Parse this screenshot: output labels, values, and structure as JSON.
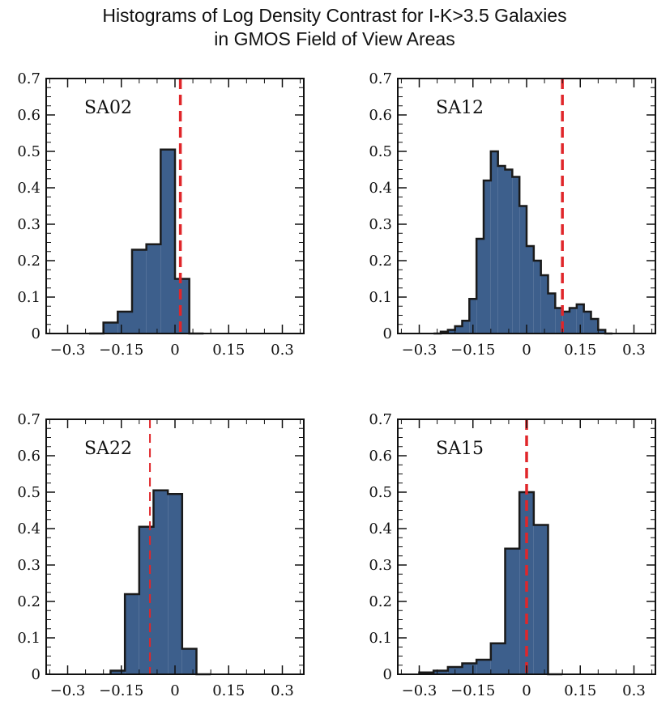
{
  "title": [
    "Histograms of Log Density Contrast for I-K>3.5 Galaxies",
    "in GMOS Field of View Areas"
  ],
  "colors": {
    "fill": "#3d5f8c",
    "outline": "#1a1a1a",
    "marker": "#e0262a"
  },
  "chart_data": [
    {
      "type": "bar",
      "label": "SA02",
      "xlim": [
        -0.36,
        0.36
      ],
      "ylim": [
        0,
        0.7
      ],
      "xticks": [
        "-0.3",
        "-0.15",
        "0",
        "0.15",
        "0.3"
      ],
      "xtick_values": [
        -0.3,
        -0.15,
        0,
        0.15,
        0.3
      ],
      "yticks": [
        "0",
        "0.1",
        "0.2",
        "0.3",
        "0.4",
        "0.5",
        "0.6",
        "0.7"
      ],
      "ytick_values": [
        0,
        0.1,
        0.2,
        0.3,
        0.4,
        0.5,
        0.6,
        0.7
      ],
      "bin_edges": [
        -0.24,
        -0.2,
        -0.16,
        -0.12,
        -0.08,
        -0.04,
        0.0,
        0.04,
        0.08
      ],
      "values": [
        0.0,
        0.03,
        0.06,
        0.23,
        0.245,
        0.505,
        0.15,
        0.0
      ],
      "marker_x": 0.015,
      "marker_style": "thick-dashed"
    },
    {
      "type": "bar",
      "label": "SA12",
      "xlim": [
        -0.36,
        0.36
      ],
      "ylim": [
        0,
        0.7
      ],
      "xticks": [
        "-0.3",
        "-0.15",
        "0",
        "0.15",
        "0.3"
      ],
      "xtick_values": [
        -0.3,
        -0.15,
        0,
        0.15,
        0.3
      ],
      "yticks": [
        "0",
        "0.1",
        "0.2",
        "0.3",
        "0.4",
        "0.5",
        "0.6",
        "0.7"
      ],
      "ytick_values": [
        0,
        0.1,
        0.2,
        0.3,
        0.4,
        0.5,
        0.6,
        0.7
      ],
      "bin_edges": [
        -0.26,
        -0.24,
        -0.22,
        -0.2,
        -0.18,
        -0.16,
        -0.14,
        -0.12,
        -0.1,
        -0.08,
        -0.06,
        -0.04,
        -0.02,
        0.0,
        0.02,
        0.04,
        0.06,
        0.08,
        0.1,
        0.12,
        0.14,
        0.16,
        0.18,
        0.2,
        0.22,
        0.24
      ],
      "values": [
        0.0,
        0.005,
        0.01,
        0.02,
        0.035,
        0.095,
        0.26,
        0.42,
        0.5,
        0.46,
        0.45,
        0.43,
        0.35,
        0.24,
        0.2,
        0.16,
        0.11,
        0.07,
        0.06,
        0.07,
        0.08,
        0.06,
        0.04,
        0.01,
        0.0
      ],
      "marker_x": 0.1,
      "marker_style": "thick-dashed"
    },
    {
      "type": "bar",
      "label": "SA22",
      "xlim": [
        -0.36,
        0.36
      ],
      "ylim": [
        0,
        0.7
      ],
      "xticks": [
        "-0.3",
        "-0.15",
        "0",
        "0.15",
        "0.3"
      ],
      "xtick_values": [
        -0.3,
        -0.15,
        0,
        0.15,
        0.3
      ],
      "yticks": [
        "0",
        "0.1",
        "0.2",
        "0.3",
        "0.4",
        "0.5",
        "0.6",
        "0.7"
      ],
      "ytick_values": [
        0,
        0.1,
        0.2,
        0.3,
        0.4,
        0.5,
        0.6,
        0.7
      ],
      "bin_edges": [
        -0.18,
        -0.14,
        -0.1,
        -0.06,
        -0.02,
        0.02,
        0.06,
        0.1
      ],
      "values": [
        0.01,
        0.22,
        0.405,
        0.505,
        0.495,
        0.07,
        0.0
      ],
      "marker_x": -0.07,
      "marker_style": "thin-dashed"
    },
    {
      "type": "bar",
      "label": "SA15",
      "xlim": [
        -0.36,
        0.36
      ],
      "ylim": [
        0,
        0.7
      ],
      "xticks": [
        "-0.3",
        "-0.15",
        "0",
        "0.15",
        "0.3"
      ],
      "xtick_values": [
        -0.3,
        -0.15,
        0,
        0.15,
        0.3
      ],
      "yticks": [
        "0",
        "0.1",
        "0.2",
        "0.3",
        "0.4",
        "0.5",
        "0.6",
        "0.7"
      ],
      "ytick_values": [
        0,
        0.1,
        0.2,
        0.3,
        0.4,
        0.5,
        0.6,
        0.7
      ],
      "bin_edges": [
        -0.3,
        -0.26,
        -0.22,
        -0.18,
        -0.14,
        -0.1,
        -0.06,
        -0.02,
        0.02,
        0.06,
        0.1
      ],
      "values": [
        0.005,
        0.01,
        0.02,
        0.03,
        0.04,
        0.085,
        0.345,
        0.5,
        0.41,
        0.0
      ],
      "marker_x": 0.0,
      "marker_style": "thick-dashed"
    }
  ]
}
